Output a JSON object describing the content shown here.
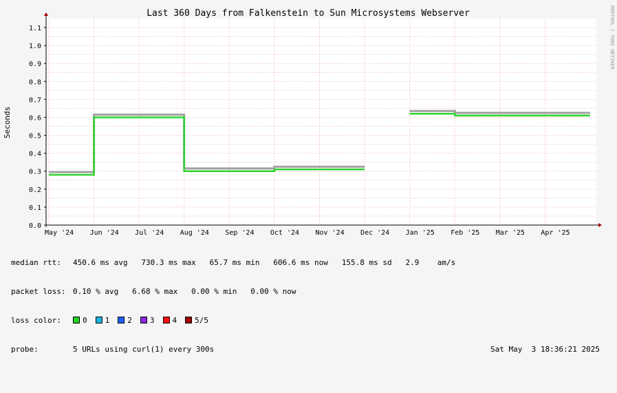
{
  "chart_data": {
    "type": "line",
    "title": "Last 360 Days from Falkenstein to Sun Microsystems Webserver",
    "ylabel": "Seconds",
    "xlabel": "",
    "ylim": [
      0,
      1.15
    ],
    "y_ticks": [
      "0.0",
      "0.1",
      "0.2",
      "0.3",
      "0.4",
      "0.5",
      "0.6",
      "0.7",
      "0.8",
      "0.9",
      "1.0",
      "1.1"
    ],
    "x_ticks": [
      "May '24",
      "Jun '24",
      "Jul '24",
      "Aug '24",
      "Sep '24",
      "Oct '24",
      "Nov '24",
      "Dec '24",
      "Jan '25",
      "Feb '25",
      "Mar '25",
      "Apr '25"
    ],
    "grid": true,
    "side_label": "RRDTOOL / TOBI OETIKER",
    "series": [
      {
        "name": "median rtt",
        "color": "#2fd22f",
        "x": [
          "May '24",
          "Jun '24",
          "Jul '24",
          "Aug '24",
          "Sep '24",
          "Oct '24",
          "Nov '24",
          "Dec '24",
          "Jan '25",
          "Feb '25",
          "Mar '25",
          "Apr '25"
        ],
        "values": [
          0.28,
          0.6,
          0.6,
          0.3,
          0.3,
          0.31,
          0.31,
          null,
          0.62,
          0.61,
          0.61,
          0.61
        ]
      }
    ]
  },
  "stats": {
    "rtt_label": "median rtt:",
    "rtt_values": "450.6 ms avg   730.3 ms max   65.7 ms min   606.6 ms now   155.8 ms sd   2.9    am/s",
    "loss_label": "packet loss:",
    "loss_values": "0.10 % avg   6.68 % max   0.00 % min   0.00 % now",
    "color_label": "loss color:",
    "colors": [
      {
        "label": "0",
        "color": "#20d020"
      },
      {
        "label": "1",
        "color": "#1fb3e0"
      },
      {
        "label": "2",
        "color": "#2060ff"
      },
      {
        "label": "3",
        "color": "#8a2be2"
      },
      {
        "label": "4",
        "color": "#ff1010"
      },
      {
        "label": "5/5",
        "color": "#a00000"
      }
    ],
    "probe_label": "probe:",
    "probe_value": "5 URLs using curl(1) every 300s",
    "timestamp": "Sat May  3 18:36:21 2025"
  }
}
